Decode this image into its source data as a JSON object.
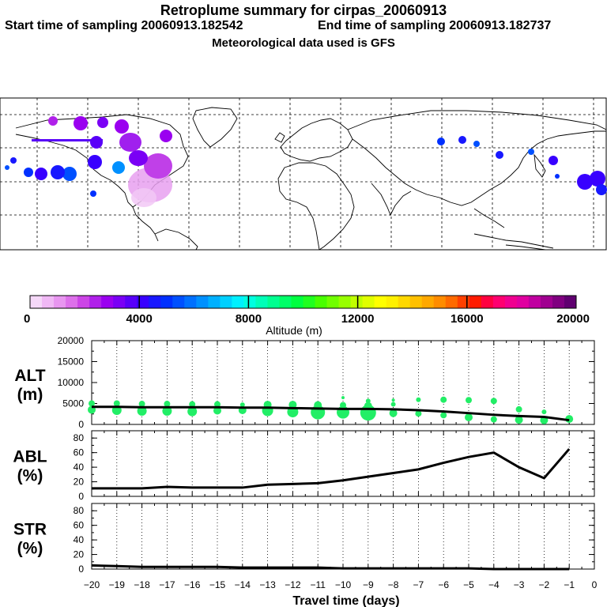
{
  "header": {
    "title": "Retroplume summary for cirpas_20060913",
    "start_time": "Start time of sampling 20060913.182542",
    "end_time": "End time of sampling 20060913.182737",
    "met_data": "Meteorological data used is GFS"
  },
  "colorbar": {
    "ticks": [
      "0",
      "4000",
      "8000",
      "12000",
      "16000",
      "20000"
    ],
    "label": "Altitude (m)",
    "colors": [
      "#f5d8f8",
      "#f0b8f5",
      "#e896f0",
      "#dd70ea",
      "#cc45e6",
      "#b020ea",
      "#9a00f0",
      "#7a00f5",
      "#5800f8",
      "#3800ff",
      "#1818ff",
      "#0030ff",
      "#0050ff",
      "#0070ff",
      "#0090ff",
      "#00b0ff",
      "#00d0ff",
      "#00f0ff",
      "#00ffe0",
      "#00ffb8",
      "#00ff90",
      "#00ff68",
      "#00ff40",
      "#20ff20",
      "#48ff00",
      "#70ff00",
      "#98ff00",
      "#c0ff00",
      "#e0ff00",
      "#ffff00",
      "#fff000",
      "#ffd800",
      "#ffc000",
      "#ffa800",
      "#ff8c00",
      "#ff6a00",
      "#ff4000",
      "#ff1a00",
      "#ff0040",
      "#ff0070",
      "#f00090",
      "#e000a0",
      "#c000a0",
      "#a00090",
      "#800080",
      "#600070"
    ]
  },
  "chart_data": [
    {
      "type": "scatter",
      "name": "ALT",
      "ylabel": "ALT\n(m)",
      "ylabel_line1": "ALT",
      "ylabel_line2": "(m)",
      "ylim": [
        0,
        20000
      ],
      "yticks": [
        "0",
        "5000",
        "10000",
        "15000",
        "20000"
      ],
      "xlim": [
        -20,
        0
      ],
      "line": {
        "x": [
          -20,
          -19,
          -18,
          -17,
          -16,
          -15,
          -14,
          -13,
          -12,
          -11,
          -10,
          -9,
          -8,
          -7,
          -6,
          -5,
          -4,
          -3,
          -2,
          -1
        ],
        "y": [
          4200,
          4200,
          4100,
          4100,
          4100,
          4100,
          4000,
          4000,
          3900,
          3800,
          3700,
          3700,
          3600,
          3400,
          3100,
          2700,
          2300,
          2000,
          1800,
          1000
        ]
      },
      "points": [
        {
          "x": -20,
          "y": 5000,
          "r": 4
        },
        {
          "x": -20,
          "y": 3500,
          "r": 5
        },
        {
          "x": -19,
          "y": 5000,
          "r": 4
        },
        {
          "x": -19,
          "y": 3400,
          "r": 6
        },
        {
          "x": -18,
          "y": 4900,
          "r": 4
        },
        {
          "x": -18,
          "y": 3200,
          "r": 6
        },
        {
          "x": -17,
          "y": 4900,
          "r": 4
        },
        {
          "x": -17,
          "y": 3200,
          "r": 6
        },
        {
          "x": -16,
          "y": 4800,
          "r": 4
        },
        {
          "x": -16,
          "y": 3100,
          "r": 6
        },
        {
          "x": -15,
          "y": 4800,
          "r": 4
        },
        {
          "x": -15,
          "y": 3300,
          "r": 5
        },
        {
          "x": -14,
          "y": 4700,
          "r": 3
        },
        {
          "x": -14,
          "y": 3400,
          "r": 5
        },
        {
          "x": -13,
          "y": 4700,
          "r": 5
        },
        {
          "x": -13,
          "y": 3300,
          "r": 7
        },
        {
          "x": -12,
          "y": 4700,
          "r": 5
        },
        {
          "x": -12,
          "y": 3000,
          "r": 7
        },
        {
          "x": -11,
          "y": 4600,
          "r": 5
        },
        {
          "x": -11,
          "y": 2900,
          "r": 9
        },
        {
          "x": -10,
          "y": 6400,
          "r": 2
        },
        {
          "x": -10,
          "y": 4600,
          "r": 4
        },
        {
          "x": -10,
          "y": 2900,
          "r": 8
        },
        {
          "x": -9,
          "y": 5600,
          "r": 3
        },
        {
          "x": -9,
          "y": 4400,
          "r": 5
        },
        {
          "x": -9,
          "y": 2800,
          "r": 10
        },
        {
          "x": -8,
          "y": 5800,
          "r": 2
        },
        {
          "x": -8,
          "y": 4800,
          "r": 3
        },
        {
          "x": -8,
          "y": 2700,
          "r": 5
        },
        {
          "x": -7,
          "y": 5900,
          "r": 3
        },
        {
          "x": -7,
          "y": 2600,
          "r": 4
        },
        {
          "x": -6,
          "y": 5900,
          "r": 4
        },
        {
          "x": -6,
          "y": 2200,
          "r": 4
        },
        {
          "x": -5,
          "y": 5800,
          "r": 4
        },
        {
          "x": -5,
          "y": 1700,
          "r": 5
        },
        {
          "x": -4,
          "y": 5600,
          "r": 4
        },
        {
          "x": -4,
          "y": 1200,
          "r": 4
        },
        {
          "x": -3,
          "y": 3600,
          "r": 4
        },
        {
          "x": -3,
          "y": 1100,
          "r": 5
        },
        {
          "x": -2,
          "y": 3000,
          "r": 3
        },
        {
          "x": -2,
          "y": 1000,
          "r": 5
        },
        {
          "x": -1,
          "y": 1300,
          "r": 5
        }
      ]
    },
    {
      "type": "line",
      "name": "ABL",
      "ylabel": "ABL\n(%)",
      "ylabel_line1": "ABL",
      "ylabel_line2": "(%)",
      "ylim": [
        0,
        90
      ],
      "yticks": [
        "0",
        "20",
        "40",
        "60",
        "80"
      ],
      "x": [
        -20,
        -19,
        -18,
        -17,
        -16,
        -15,
        -14,
        -13,
        -12,
        -11,
        -10,
        -9,
        -8,
        -7,
        -6,
        -5,
        -4,
        -3,
        -2,
        -1
      ],
      "y": [
        11,
        11,
        11,
        13,
        12,
        12,
        12,
        16,
        17,
        18,
        22,
        27,
        32,
        37,
        46,
        54,
        60,
        40,
        25,
        65
      ]
    },
    {
      "type": "line",
      "name": "STR",
      "ylabel": "STR\n(%)",
      "ylabel_line1": "STR",
      "ylabel_line2": "(%)",
      "ylim": [
        0,
        90
      ],
      "yticks": [
        "0",
        "20",
        "40",
        "60",
        "80"
      ],
      "x": [
        -20,
        -19,
        -18,
        -17,
        -16,
        -15,
        -14,
        -13,
        -12,
        -11,
        -10,
        -9,
        -8,
        -7,
        -6,
        -5,
        -4,
        -3,
        -2,
        -1
      ],
      "y": [
        5,
        4,
        3,
        3,
        3,
        3,
        2,
        2,
        2,
        2,
        1,
        1,
        1,
        1,
        1,
        1,
        0,
        0,
        0,
        0
      ],
      "xlabel": "Travel time (days)",
      "xticks": [
        "−20",
        "−19",
        "−18",
        "−17",
        "−16",
        "−15",
        "−14",
        "−13",
        "−12",
        "−11",
        "−10",
        "−9",
        "−8",
        "−7",
        "−6",
        "−5",
        "−4",
        "−3",
        "−2",
        "−1",
        "0"
      ]
    }
  ]
}
